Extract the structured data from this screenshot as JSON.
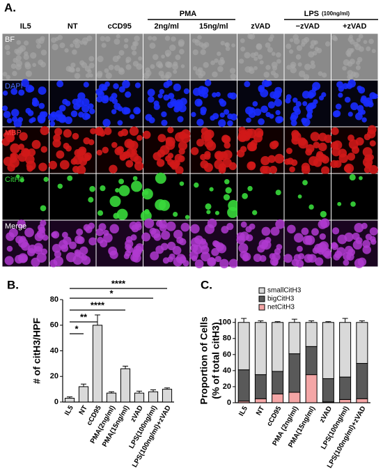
{
  "panel_a": {
    "label": "A.",
    "columns": [
      "IL5",
      "NT",
      "cCD95",
      "2ng/ml",
      "15ng/ml",
      "zVAD",
      "−zVAD",
      "+zVAD"
    ],
    "groups": {
      "pma": "PMA",
      "lps": "LPS",
      "lps_conc": "(100ng/ml)"
    },
    "rows": [
      "BF",
      "DAPI",
      "MBP",
      "CitH3",
      "Merge"
    ]
  },
  "chart_data": [
    {
      "type": "bar",
      "panel": "B.",
      "ylabel": "# of citH3/HPF",
      "categories": [
        "IL5",
        "NT",
        "cCD95",
        "PMA(2ng/ml)",
        "PMA(15ng/ml)",
        "zVAD",
        "LPS(100ng/ml)",
        "LPS(100ng/ml)+zVAD"
      ],
      "values": [
        3,
        12,
        60,
        7,
        26,
        7,
        8,
        10
      ],
      "errors": [
        1,
        2,
        8,
        1,
        2,
        1.5,
        1.5,
        1
      ],
      "color": "#d9d9d9",
      "ylim": [
        0,
        80
      ],
      "yticks": [
        0,
        20,
        40,
        60,
        80
      ],
      "annotations": [
        "****",
        "*",
        "****",
        "**",
        "*"
      ]
    },
    {
      "type": "stacked_bar",
      "panel": "C.",
      "ylabel": [
        "Proportion of Cells",
        "(% of total citH3)"
      ],
      "categories": [
        "IL5",
        "NT",
        "cCD95",
        "PMA (2ng/ml)",
        "PMA(15ng/ml)",
        "zVAD",
        "LPS(100ng/ml)",
        "LPS(100ng/ml)+zVAD"
      ],
      "series": [
        {
          "name": "smallCitH3",
          "color": "#d9d9d9",
          "values": [
            59,
            65,
            61,
            39,
            30,
            70,
            68,
            51
          ],
          "errors": [
            5,
            2,
            1,
            4,
            2,
            1,
            5,
            2
          ]
        },
        {
          "name": "bigCitH3",
          "color": "#595959",
          "values": [
            39,
            30,
            28,
            48,
            35,
            29,
            28,
            44
          ],
          "errors": [
            5,
            3,
            1,
            7,
            2,
            1,
            3,
            1
          ]
        },
        {
          "name": "netCitH3",
          "color": "#f4a6a6",
          "values": [
            2,
            5,
            11,
            13,
            35,
            1,
            4,
            5
          ],
          "errors": [
            1,
            1,
            1,
            7,
            1,
            0.5,
            1,
            1
          ]
        }
      ],
      "ylim": [
        0,
        105
      ],
      "yticks": [
        0,
        20,
        40,
        60,
        80,
        100
      ],
      "legend": "top"
    }
  ]
}
